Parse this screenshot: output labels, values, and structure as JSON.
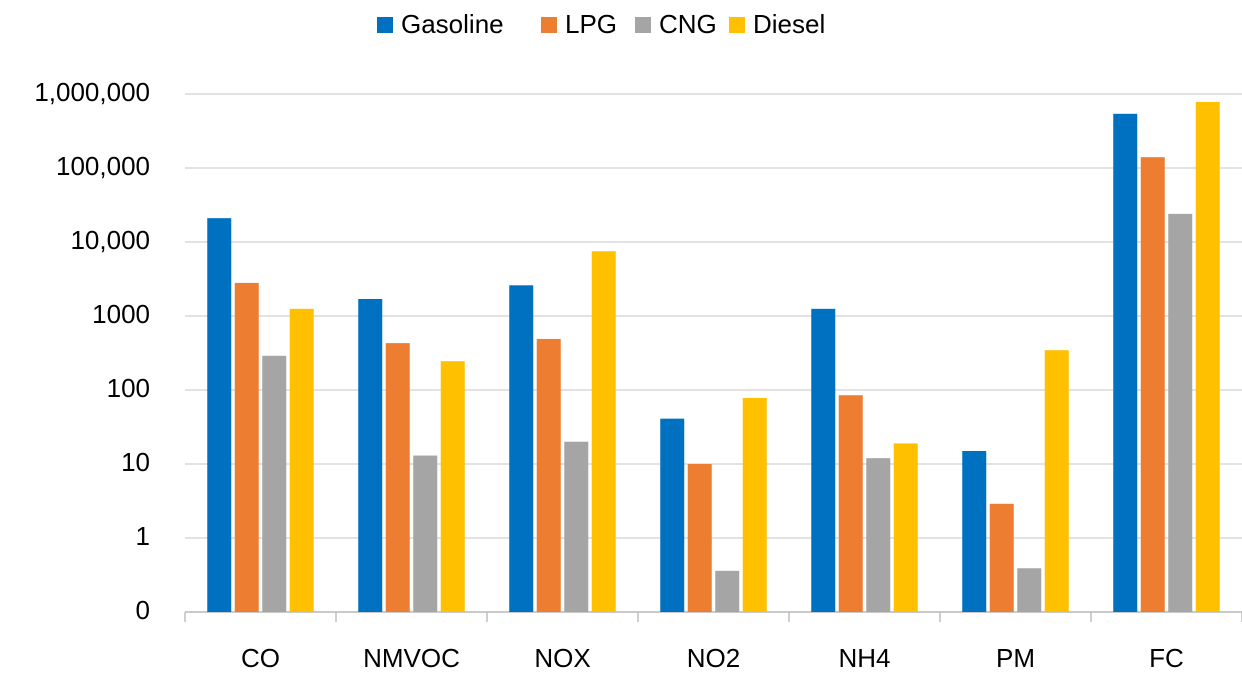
{
  "chart_data": {
    "type": "bar",
    "log_scale": true,
    "grid": true,
    "legend_position": "top",
    "categories": [
      "CO",
      "NMVOC",
      "NOX",
      "NO2",
      "NH4",
      "PM",
      "FC"
    ],
    "series": [
      {
        "name": "Gasoline",
        "color": "#0070c0",
        "values": [
          21000,
          1700,
          2600,
          41,
          1250,
          15,
          540000
        ]
      },
      {
        "name": "LPG",
        "color": "#ed7d31",
        "values": [
          2800,
          430,
          490,
          10,
          85,
          2.9,
          140000
        ]
      },
      {
        "name": "CNG",
        "color": "#a5a5a5",
        "values": [
          290,
          13,
          20,
          0.36,
          12,
          0.39,
          24000
        ]
      },
      {
        "name": "Diesel",
        "color": "#ffc000",
        "values": [
          1250,
          245,
          7500,
          78,
          19,
          345,
          780000
        ]
      }
    ],
    "ylim": [
      0.1,
      1000000
    ],
    "yticks": [
      {
        "value": 0.1,
        "label": "0"
      },
      1,
      10,
      100,
      1000,
      {
        "value": 10000,
        "label": "10,000"
      },
      {
        "value": 100000,
        "label": "100,000"
      },
      {
        "value": 1000000,
        "label": "1,000,000"
      }
    ]
  }
}
